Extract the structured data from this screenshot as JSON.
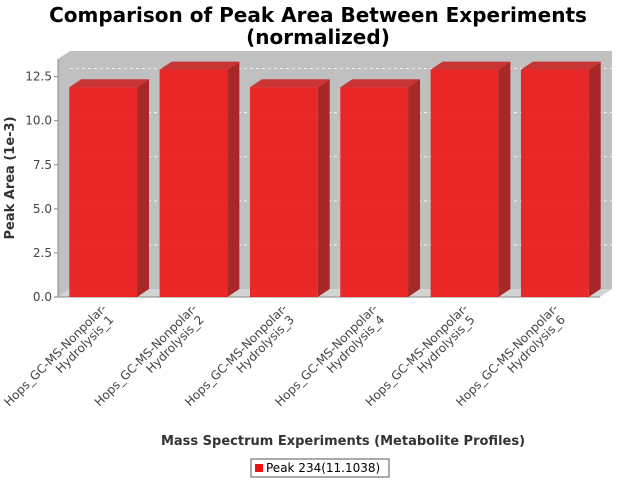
{
  "chart_data": {
    "type": "bar",
    "title": [
      "Comparison of Peak Area Between Experiments",
      "(normalized)"
    ],
    "xlabel": "Mass Spectrum Experiments (Metabolite Profiles)",
    "ylabel": "Peak Area (1e-3)",
    "categories": [
      [
        "Hops_GC-MS-Nonpolar-",
        "Hydrolysis_1"
      ],
      [
        "Hops_GC-MS-Nonpolar-",
        "Hydrolysis_2"
      ],
      [
        "Hops_GC-MS-Nonpolar-",
        "Hydrolysis_3"
      ],
      [
        "Hops_GC-MS-Nonpolar-",
        "Hydrolysis_4"
      ],
      [
        "Hops_GC-MS-Nonpolar-",
        "Hydrolysis_5"
      ],
      [
        "Hops_GC-MS-Nonpolar-",
        "Hydrolysis_6"
      ]
    ],
    "series": [
      {
        "name": "Peak 234(11.1038)",
        "values": [
          11.9,
          12.9,
          11.9,
          11.9,
          12.9,
          12.9
        ]
      }
    ],
    "yticks": [
      "0.0",
      "2.5",
      "5.0",
      "7.5",
      "10.0",
      "12.5"
    ],
    "ylim": [
      0,
      13.5
    ],
    "grid": true,
    "legend": "bottom",
    "bar_color": "#ee1111",
    "plot_background": "#c0c0c0"
  }
}
